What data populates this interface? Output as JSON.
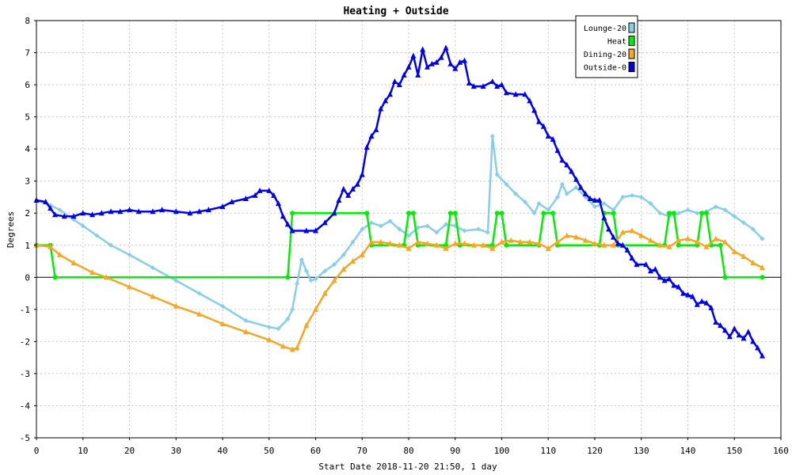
{
  "chart_data": {
    "type": "line",
    "title": "Heating + Outside",
    "xlabel": "Start Date 2018-11-20 21:50, 1 day",
    "ylabel": "Degrees",
    "xlim": [
      0,
      160
    ],
    "ylim": [
      -5,
      8
    ],
    "x_ticks": [
      0,
      10,
      20,
      30,
      40,
      50,
      60,
      70,
      80,
      90,
      100,
      110,
      120,
      130,
      140,
      150,
      160
    ],
    "y_ticks": [
      -5,
      -4,
      -3,
      -2,
      -1,
      0,
      1,
      2,
      3,
      4,
      5,
      6,
      7,
      8
    ],
    "grid": true,
    "legend_position": "top-right",
    "series": [
      {
        "name": "Lounge-20",
        "color": "#87ceeb",
        "marker": "diamond",
        "points": [
          [
            0,
            2.4
          ],
          [
            3,
            2.25
          ],
          [
            5,
            2.1
          ],
          [
            8,
            1.8
          ],
          [
            10,
            1.6
          ],
          [
            13,
            1.3
          ],
          [
            16,
            1.0
          ],
          [
            20,
            0.7
          ],
          [
            25,
            0.3
          ],
          [
            30,
            -0.1
          ],
          [
            35,
            -0.5
          ],
          [
            40,
            -0.9
          ],
          [
            45,
            -1.35
          ],
          [
            50,
            -1.55
          ],
          [
            52,
            -1.6
          ],
          [
            54,
            -1.3
          ],
          [
            55,
            -1.0
          ],
          [
            56,
            -0.2
          ],
          [
            57,
            0.55
          ],
          [
            58,
            0.2
          ],
          [
            59,
            -0.1
          ],
          [
            60,
            -0.05
          ],
          [
            62,
            0.2
          ],
          [
            64,
            0.4
          ],
          [
            66,
            0.7
          ],
          [
            68,
            1.1
          ],
          [
            70,
            1.5
          ],
          [
            72,
            1.7
          ],
          [
            74,
            1.6
          ],
          [
            76,
            1.75
          ],
          [
            78,
            1.5
          ],
          [
            80,
            1.3
          ],
          [
            82,
            1.55
          ],
          [
            84,
            1.6
          ],
          [
            86,
            1.4
          ],
          [
            88,
            1.65
          ],
          [
            90,
            1.6
          ],
          [
            92,
            1.45
          ],
          [
            95,
            1.5
          ],
          [
            97,
            1.4
          ],
          [
            98,
            4.4
          ],
          [
            99,
            3.2
          ],
          [
            101,
            2.9
          ],
          [
            103,
            2.6
          ],
          [
            105,
            2.35
          ],
          [
            107,
            2.0
          ],
          [
            108,
            2.3
          ],
          [
            110,
            2.1
          ],
          [
            112,
            2.5
          ],
          [
            113,
            2.9
          ],
          [
            114,
            2.6
          ],
          [
            116,
            2.8
          ],
          [
            118,
            2.5
          ],
          [
            120,
            2.2
          ],
          [
            122,
            2.3
          ],
          [
            124,
            2.1
          ],
          [
            126,
            2.5
          ],
          [
            128,
            2.55
          ],
          [
            130,
            2.5
          ],
          [
            132,
            2.3
          ],
          [
            134,
            2.0
          ],
          [
            136,
            1.9
          ],
          [
            138,
            2.0
          ],
          [
            140,
            2.1
          ],
          [
            142,
            2.0
          ],
          [
            144,
            2.05
          ],
          [
            146,
            2.2
          ],
          [
            148,
            2.1
          ],
          [
            150,
            1.9
          ],
          [
            152,
            1.7
          ],
          [
            154,
            1.5
          ],
          [
            156,
            1.2
          ]
        ]
      },
      {
        "name": "Heat",
        "color": "#00ee00",
        "marker": "circle",
        "points": [
          [
            0,
            1
          ],
          [
            3,
            1
          ],
          [
            4,
            0
          ],
          [
            54,
            0
          ],
          [
            55,
            2
          ],
          [
            71,
            2
          ],
          [
            72,
            1
          ],
          [
            79,
            1
          ],
          [
            80,
            2
          ],
          [
            81,
            2
          ],
          [
            82,
            1
          ],
          [
            88,
            1
          ],
          [
            89,
            2
          ],
          [
            90,
            2
          ],
          [
            91,
            1
          ],
          [
            98,
            1
          ],
          [
            99,
            2
          ],
          [
            100,
            2
          ],
          [
            101,
            1
          ],
          [
            108,
            1
          ],
          [
            109,
            2
          ],
          [
            111,
            2
          ],
          [
            112,
            1
          ],
          [
            121,
            1
          ],
          [
            122,
            2
          ],
          [
            124,
            2
          ],
          [
            125,
            1
          ],
          [
            135,
            1
          ],
          [
            136,
            2
          ],
          [
            137,
            2
          ],
          [
            138,
            1
          ],
          [
            142,
            1
          ],
          [
            143,
            2
          ],
          [
            144,
            2
          ],
          [
            145,
            1
          ],
          [
            147,
            1
          ],
          [
            148,
            0
          ],
          [
            156,
            0
          ]
        ]
      },
      {
        "name": "Dining-20",
        "color": "#f5a623",
        "marker": "triangle",
        "points": [
          [
            0,
            1.0
          ],
          [
            3,
            0.95
          ],
          [
            5,
            0.7
          ],
          [
            8,
            0.45
          ],
          [
            12,
            0.15
          ],
          [
            15,
            0.0
          ],
          [
            20,
            -0.3
          ],
          [
            25,
            -0.6
          ],
          [
            30,
            -0.9
          ],
          [
            35,
            -1.15
          ],
          [
            40,
            -1.45
          ],
          [
            45,
            -1.7
          ],
          [
            50,
            -1.95
          ],
          [
            53,
            -2.15
          ],
          [
            55,
            -2.25
          ],
          [
            56,
            -2.2
          ],
          [
            58,
            -1.5
          ],
          [
            60,
            -1.0
          ],
          [
            62,
            -0.5
          ],
          [
            64,
            -0.1
          ],
          [
            66,
            0.25
          ],
          [
            68,
            0.5
          ],
          [
            70,
            0.7
          ],
          [
            72,
            1.1
          ],
          [
            74,
            1.1
          ],
          [
            76,
            1.05
          ],
          [
            78,
            1.0
          ],
          [
            80,
            0.9
          ],
          [
            82,
            1.1
          ],
          [
            84,
            1.05
          ],
          [
            86,
            1.0
          ],
          [
            88,
            0.9
          ],
          [
            90,
            1.05
          ],
          [
            92,
            1.05
          ],
          [
            94,
            1.0
          ],
          [
            96,
            1.0
          ],
          [
            98,
            0.9
          ],
          [
            100,
            1.1
          ],
          [
            102,
            1.15
          ],
          [
            104,
            1.1
          ],
          [
            106,
            1.1
          ],
          [
            108,
            1.05
          ],
          [
            110,
            0.9
          ],
          [
            112,
            1.1
          ],
          [
            114,
            1.3
          ],
          [
            116,
            1.25
          ],
          [
            118,
            1.15
          ],
          [
            120,
            1.05
          ],
          [
            122,
            1.0
          ],
          [
            124,
            1.0
          ],
          [
            126,
            1.4
          ],
          [
            128,
            1.45
          ],
          [
            130,
            1.3
          ],
          [
            132,
            1.15
          ],
          [
            134,
            1.0
          ],
          [
            136,
            0.95
          ],
          [
            138,
            1.15
          ],
          [
            140,
            1.2
          ],
          [
            142,
            1.1
          ],
          [
            144,
            0.95
          ],
          [
            146,
            1.2
          ],
          [
            148,
            1.1
          ],
          [
            150,
            0.8
          ],
          [
            152,
            0.65
          ],
          [
            154,
            0.45
          ],
          [
            156,
            0.3
          ]
        ]
      },
      {
        "name": "Outside-0",
        "color": "#0000ee",
        "marker": "triangle",
        "points": [
          [
            0,
            2.4
          ],
          [
            2,
            2.35
          ],
          [
            3,
            2.15
          ],
          [
            4,
            1.95
          ],
          [
            6,
            1.9
          ],
          [
            8,
            1.9
          ],
          [
            10,
            2.0
          ],
          [
            12,
            1.95
          ],
          [
            14,
            2.0
          ],
          [
            16,
            2.05
          ],
          [
            18,
            2.05
          ],
          [
            20,
            2.1
          ],
          [
            22,
            2.05
          ],
          [
            25,
            2.05
          ],
          [
            27,
            2.1
          ],
          [
            30,
            2.05
          ],
          [
            33,
            2.0
          ],
          [
            35,
            2.05
          ],
          [
            37,
            2.1
          ],
          [
            40,
            2.2
          ],
          [
            42,
            2.35
          ],
          [
            45,
            2.45
          ],
          [
            47,
            2.55
          ],
          [
            48,
            2.7
          ],
          [
            50,
            2.7
          ],
          [
            51,
            2.55
          ],
          [
            52,
            2.3
          ],
          [
            53,
            1.9
          ],
          [
            54,
            1.65
          ],
          [
            55,
            1.45
          ],
          [
            58,
            1.45
          ],
          [
            60,
            1.45
          ],
          [
            62,
            1.7
          ],
          [
            64,
            2.0
          ],
          [
            65,
            2.4
          ],
          [
            66,
            2.75
          ],
          [
            67,
            2.55
          ],
          [
            68,
            2.75
          ],
          [
            69,
            2.9
          ],
          [
            70,
            3.2
          ],
          [
            71,
            4.05
          ],
          [
            72,
            4.4
          ],
          [
            73,
            4.6
          ],
          [
            74,
            5.25
          ],
          [
            75,
            5.5
          ],
          [
            76,
            5.7
          ],
          [
            77,
            6.1
          ],
          [
            78,
            6.0
          ],
          [
            79,
            6.3
          ],
          [
            80,
            6.55
          ],
          [
            81,
            6.9
          ],
          [
            82,
            6.3
          ],
          [
            83,
            7.1
          ],
          [
            84,
            6.55
          ],
          [
            85,
            6.65
          ],
          [
            86,
            6.7
          ],
          [
            87,
            6.85
          ],
          [
            88,
            7.15
          ],
          [
            89,
            6.65
          ],
          [
            90,
            6.5
          ],
          [
            91,
            6.7
          ],
          [
            92,
            6.75
          ],
          [
            93,
            6.05
          ],
          [
            94,
            5.95
          ],
          [
            96,
            5.95
          ],
          [
            98,
            6.1
          ],
          [
            99,
            5.95
          ],
          [
            100,
            6.0
          ],
          [
            101,
            5.75
          ],
          [
            103,
            5.7
          ],
          [
            105,
            5.7
          ],
          [
            106,
            5.5
          ],
          [
            107,
            5.2
          ],
          [
            108,
            4.85
          ],
          [
            109,
            4.7
          ],
          [
            110,
            4.4
          ],
          [
            111,
            4.3
          ],
          [
            112,
            3.95
          ],
          [
            113,
            3.65
          ],
          [
            114,
            3.5
          ],
          [
            115,
            3.3
          ],
          [
            116,
            3.05
          ],
          [
            117,
            2.8
          ],
          [
            118,
            2.6
          ],
          [
            119,
            2.45
          ],
          [
            120,
            2.4
          ],
          [
            121,
            2.4
          ],
          [
            122,
            1.85
          ],
          [
            123,
            1.5
          ],
          [
            124,
            1.25
          ],
          [
            125,
            1.05
          ],
          [
            126,
            1.0
          ],
          [
            127,
            0.85
          ],
          [
            128,
            0.6
          ],
          [
            129,
            0.4
          ],
          [
            131,
            0.4
          ],
          [
            132,
            0.2
          ],
          [
            133,
            0.25
          ],
          [
            134,
            0.0
          ],
          [
            135,
            -0.1
          ],
          [
            136,
            -0.05
          ],
          [
            137,
            -0.25
          ],
          [
            138,
            -0.3
          ],
          [
            139,
            -0.5
          ],
          [
            140,
            -0.55
          ],
          [
            141,
            -0.6
          ],
          [
            142,
            -0.85
          ],
          [
            143,
            -0.75
          ],
          [
            144,
            -0.8
          ],
          [
            145,
            -0.95
          ],
          [
            146,
            -1.4
          ],
          [
            147,
            -1.5
          ],
          [
            148,
            -1.65
          ],
          [
            149,
            -1.85
          ],
          [
            150,
            -1.6
          ],
          [
            151,
            -1.8
          ],
          [
            152,
            -1.9
          ],
          [
            153,
            -1.7
          ],
          [
            154,
            -2.0
          ],
          [
            155,
            -2.2
          ],
          [
            156,
            -2.45
          ]
        ]
      }
    ]
  }
}
